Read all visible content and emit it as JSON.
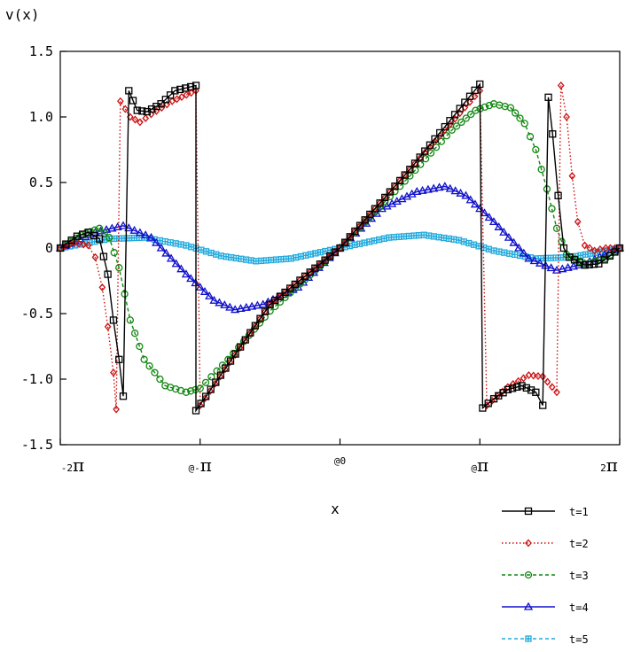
{
  "chart_data": {
    "type": "line",
    "ylabel": "v(x)",
    "xlabel": "x",
    "xlim_over_pi": [
      -2,
      2
    ],
    "ylim": [
      -1.5,
      1.5
    ],
    "yticks": [
      {
        "value": 1.5,
        "label": "1.5"
      },
      {
        "value": 1.0,
        "label": "1.0"
      },
      {
        "value": 0.5,
        "label": "0.5"
      },
      {
        "value": 0,
        "label": "0"
      },
      {
        "value": -0.5,
        "label": "-0.5"
      },
      {
        "value": -1.0,
        "label": "-1.0"
      },
      {
        "value": -1.5,
        "label": "-1.5"
      }
    ],
    "xticks": [
      {
        "value_over_pi": -2,
        "prefix": "-2",
        "pi": "π"
      },
      {
        "value_over_pi": -1,
        "prefix": "@-",
        "pi": "π"
      },
      {
        "value_over_pi": 0,
        "prefix": "@0",
        "pi": ""
      },
      {
        "value_over_pi": 1,
        "prefix": "@",
        "pi": "π"
      },
      {
        "value_over_pi": 2,
        "prefix": "2",
        "pi": "π"
      }
    ],
    "legend_position": "bottom-right",
    "series": [
      {
        "name": "t=1",
        "color": "#000000",
        "dash": "solid",
        "marker": "square",
        "points_over_pi_x": [
          [
            -2,
            0
          ],
          [
            -1.88,
            0.09
          ],
          [
            -1.8,
            0.12
          ],
          [
            -1.72,
            0.07
          ],
          [
            -1.66,
            -0.2
          ],
          [
            -1.62,
            -0.55
          ],
          [
            -1.58,
            -0.85
          ],
          [
            -1.55,
            -1.13
          ],
          [
            -1.51,
            1.2
          ],
          [
            -1.45,
            1.05
          ],
          [
            -1.38,
            1.04
          ],
          [
            -1.28,
            1.1
          ],
          [
            -1.18,
            1.2
          ],
          [
            -1.03,
            1.24
          ],
          [
            -1.03,
            -1.24
          ],
          [
            -0.5,
            -0.43
          ],
          [
            0,
            0
          ],
          [
            0.5,
            0.6
          ],
          [
            1.0,
            1.25
          ],
          [
            1.02,
            -1.22
          ],
          [
            1.1,
            -1.15
          ],
          [
            1.2,
            -1.08
          ],
          [
            1.3,
            -1.05
          ],
          [
            1.4,
            -1.1
          ],
          [
            1.45,
            -1.2
          ],
          [
            1.49,
            1.15
          ],
          [
            1.52,
            0.87
          ],
          [
            1.56,
            0.4
          ],
          [
            1.6,
            0
          ],
          [
            1.64,
            -0.07
          ],
          [
            1.75,
            -0.13
          ],
          [
            1.85,
            -0.12
          ],
          [
            1.93,
            -0.06
          ],
          [
            2,
            0
          ]
        ]
      },
      {
        "name": "t=2",
        "color": "#cc1111",
        "dash": "dotted",
        "marker": "diamond",
        "points_over_pi_x": [
          [
            -2,
            0
          ],
          [
            -1.9,
            0.04
          ],
          [
            -1.8,
            0.02
          ],
          [
            -1.75,
            -0.07
          ],
          [
            -1.7,
            -0.3
          ],
          [
            -1.66,
            -0.6
          ],
          [
            -1.62,
            -0.95
          ],
          [
            -1.6,
            -1.23
          ],
          [
            -1.57,
            1.12
          ],
          [
            -1.5,
            1.0
          ],
          [
            -1.43,
            0.96
          ],
          [
            -1.35,
            1.02
          ],
          [
            -1.2,
            1.12
          ],
          [
            -1.03,
            1.2
          ],
          [
            -1.0,
            -1.2
          ],
          [
            -0.5,
            -0.43
          ],
          [
            0,
            0
          ],
          [
            0.5,
            0.6
          ],
          [
            1.0,
            1.2
          ],
          [
            1.05,
            -1.2
          ],
          [
            1.2,
            -1.06
          ],
          [
            1.35,
            -0.97
          ],
          [
            1.45,
            -0.98
          ],
          [
            1.55,
            -1.1
          ],
          [
            1.58,
            1.24
          ],
          [
            1.62,
            1.0
          ],
          [
            1.66,
            0.55
          ],
          [
            1.7,
            0.2
          ],
          [
            1.75,
            0.02
          ],
          [
            1.82,
            -0.02
          ],
          [
            1.9,
            0.0
          ],
          [
            2,
            0
          ]
        ]
      },
      {
        "name": "t=3",
        "color": "#118811",
        "dash": "dashed",
        "marker": "circle",
        "points_over_pi_x": [
          [
            -2,
            0
          ],
          [
            -1.85,
            0.1
          ],
          [
            -1.72,
            0.15
          ],
          [
            -1.65,
            0.08
          ],
          [
            -1.58,
            -0.15
          ],
          [
            -1.5,
            -0.55
          ],
          [
            -1.4,
            -0.85
          ],
          [
            -1.25,
            -1.05
          ],
          [
            -1.1,
            -1.1
          ],
          [
            -1.0,
            -1.07
          ],
          [
            -0.8,
            -0.85
          ],
          [
            -0.5,
            -0.48
          ],
          [
            0,
            0
          ],
          [
            0.5,
            0.55
          ],
          [
            0.8,
            0.9
          ],
          [
            0.97,
            1.05
          ],
          [
            1.1,
            1.1
          ],
          [
            1.22,
            1.07
          ],
          [
            1.32,
            0.95
          ],
          [
            1.4,
            0.75
          ],
          [
            1.48,
            0.45
          ],
          [
            1.55,
            0.15
          ],
          [
            1.62,
            -0.05
          ],
          [
            1.75,
            -0.12
          ],
          [
            1.9,
            -0.08
          ],
          [
            2,
            0
          ]
        ]
      },
      {
        "name": "t=4",
        "color": "#1111cc",
        "dash": "solid",
        "marker": "triangle",
        "points_over_pi_x": [
          [
            -2,
            0
          ],
          [
            -1.75,
            0.12
          ],
          [
            -1.55,
            0.17
          ],
          [
            -1.35,
            0.08
          ],
          [
            -1.1,
            -0.2
          ],
          [
            -0.9,
            -0.4
          ],
          [
            -0.75,
            -0.47
          ],
          [
            -0.55,
            -0.43
          ],
          [
            -0.3,
            -0.3
          ],
          [
            0,
            0
          ],
          [
            0.3,
            0.3
          ],
          [
            0.55,
            0.43
          ],
          [
            0.75,
            0.47
          ],
          [
            0.9,
            0.4
          ],
          [
            1.1,
            0.2
          ],
          [
            1.35,
            -0.08
          ],
          [
            1.55,
            -0.17
          ],
          [
            1.75,
            -0.12
          ],
          [
            2,
            0
          ]
        ]
      },
      {
        "name": "t=5",
        "color": "#22aadd",
        "dash": "dashed",
        "marker": "boxplus",
        "points_over_pi_x": [
          [
            -2,
            0
          ],
          [
            -1.65,
            0.07
          ],
          [
            -1.4,
            0.08
          ],
          [
            -1.1,
            0.02
          ],
          [
            -0.85,
            -0.06
          ],
          [
            -0.6,
            -0.1
          ],
          [
            -0.35,
            -0.08
          ],
          [
            0,
            0
          ],
          [
            0.35,
            0.08
          ],
          [
            0.6,
            0.1
          ],
          [
            0.85,
            0.06
          ],
          [
            1.1,
            -0.02
          ],
          [
            1.4,
            -0.08
          ],
          [
            1.65,
            -0.07
          ],
          [
            2,
            0
          ]
        ]
      }
    ]
  }
}
